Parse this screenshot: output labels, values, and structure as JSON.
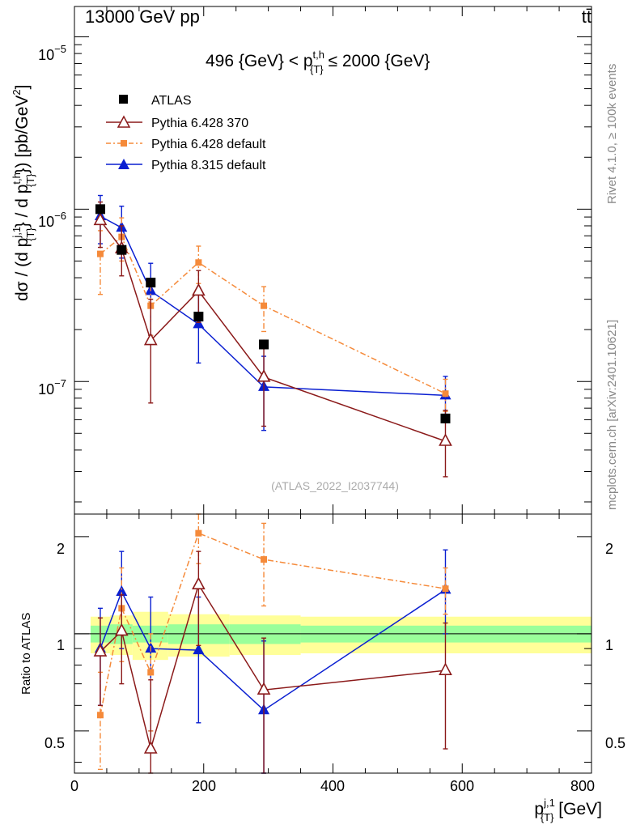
{
  "header": {
    "left": "13000 GeV pp",
    "right": "tt̄"
  },
  "side_labels": {
    "upper": "Rivet 4.1.0, ≥ 100k events",
    "lower": "mcplots.cern.ch [arXiv:2401.10621]"
  },
  "chart_data": {
    "type": "scatter",
    "title": "496 {GeV} < p_{T}^{t,h} ≤ 2000 {GeV}",
    "title_parts": {
      "pre": "496 {GeV} < p",
      "sup": "t,h",
      "sub": "{T}",
      "post": " ≤ 2000 {GeV}"
    },
    "watermark": "(ATLAS_2022_I2037744)",
    "xlabel": {
      "main": "p",
      "sup": "j,1",
      "sub": "{T}",
      "unit": " [GeV]"
    },
    "ylabel": "dσ / (d p_{T}^{j,1} / d p_{T}^{t,h}) [pb/GeV^2]",
    "ylabel_parts": {
      "a": "dσ / (d p",
      "a_sup": "j,1",
      "a_sub": "{T}",
      "b": "} / d p",
      "b_sup": "t,h",
      "b_sub": "{T}",
      "c": "}) [pb/GeV",
      "c_sup": "2",
      "d": "]"
    },
    "ratio_ylabel": "Ratio to ATLAS",
    "xlim": [
      0,
      800
    ],
    "ylim": [
      1.7e-08,
      1.5e-05
    ],
    "ratio_ylim": [
      0.37,
      2.35
    ],
    "x_ticks": [
      "0",
      "200",
      "400",
      "600",
      "800"
    ],
    "y_ticks": [
      {
        "base": "10",
        "exp": "−5"
      },
      {
        "base": "10",
        "exp": "−6"
      },
      {
        "base": "10",
        "exp": "−7"
      }
    ],
    "ratio_ticks": [
      "0.5",
      "1",
      "2"
    ],
    "x": [
      40,
      73,
      118,
      192,
      293,
      574
    ],
    "bin_edges": [
      25,
      55,
      90,
      145,
      240,
      350,
      800
    ],
    "band_inner": [
      0.06,
      0.07,
      0.06,
      0.07,
      0.07,
      0.06
    ],
    "band_outer": [
      0.13,
      0.14,
      0.17,
      0.15,
      0.14,
      0.13
    ],
    "legend": [
      "ATLAS",
      "Pythia 6.428 370",
      "Pythia 6.428 default",
      "Pythia 8.315 default"
    ],
    "series": [
      {
        "name": "ATLAS",
        "values": [
          1e-06,
          5.8e-07,
          3.75e-07,
          2.38e-07,
          1.64e-07,
          6.1e-08
        ]
      },
      {
        "name": "Pythia 6.428 370",
        "values": [
          8.6e-07,
          5.9e-07,
          1.73e-07,
          3.35e-07,
          1.06e-07,
          4.5e-08
        ],
        "err_up": [
          1.1e-06,
          8e-07,
          3e-07,
          4.4e-07,
          1.55e-07,
          6.8e-08
        ],
        "err_down": [
          6e-07,
          4.1e-07,
          7.5e-08,
          2.2e-07,
          5.5e-08,
          2.8e-08
        ],
        "ratio": [
          0.88,
          1.02,
          0.44,
          1.42,
          0.67,
          0.77
        ],
        "ratio_up": [
          1.12,
          1.32,
          0.72,
          1.8,
          0.97,
          1.08
        ],
        "ratio_down": [
          0.6,
          0.7,
          0.37,
          0.92,
          0.37,
          0.44
        ]
      },
      {
        "name": "Pythia 6.428 default",
        "values": [
          5.5e-07,
          6.9e-07,
          2.75e-07,
          4.9e-07,
          2.75e-07,
          8.5e-08
        ],
        "err_up": [
          7.5e-07,
          8.9e-07,
          3.6e-07,
          6.1e-07,
          3.55e-07,
          1.03e-07
        ],
        "err_down": [
          3.2e-07,
          5e-07,
          1.85e-07,
          3.7e-07,
          1.95e-07,
          6.7e-08
        ],
        "ratio": [
          0.56,
          1.2,
          0.76,
          2.05,
          1.7,
          1.38
        ],
        "ratio_up": [
          0.76,
          1.6,
          1.0,
          2.4,
          2.2,
          1.6
        ],
        "ratio_down": [
          0.38,
          0.82,
          0.5,
          1.65,
          1.22,
          1.15
        ]
      },
      {
        "name": "Pythia 8.315 default",
        "values": [
          9.1e-07,
          7.8e-07,
          3.35e-07,
          2.15e-07,
          9.3e-08,
          8.3e-08
        ],
        "err_up": [
          1.2e-06,
          1.04e-06,
          4.85e-07,
          3.2e-07,
          1.4e-07,
          1.07e-07
        ],
        "err_down": [
          6.3e-07,
          5.2e-07,
          1.85e-07,
          1.28e-07,
          5.2e-08,
          6e-08
        ],
        "ratio": [
          0.9,
          1.35,
          0.9,
          0.89,
          0.58,
          1.37
        ],
        "ratio_up": [
          1.2,
          1.8,
          1.3,
          1.3,
          0.95,
          1.82
        ],
        "ratio_down": [
          0.6,
          0.9,
          0.5,
          0.53,
          0.37,
          1.0
        ]
      }
    ],
    "colors": {
      "atlas": "#000000",
      "py6_370": "#8b1a1a",
      "py6_default": "#f58a3a",
      "py8": "#0a1fd1",
      "band_inner": "#9aff9a",
      "band_outer": "#ffff99"
    }
  }
}
